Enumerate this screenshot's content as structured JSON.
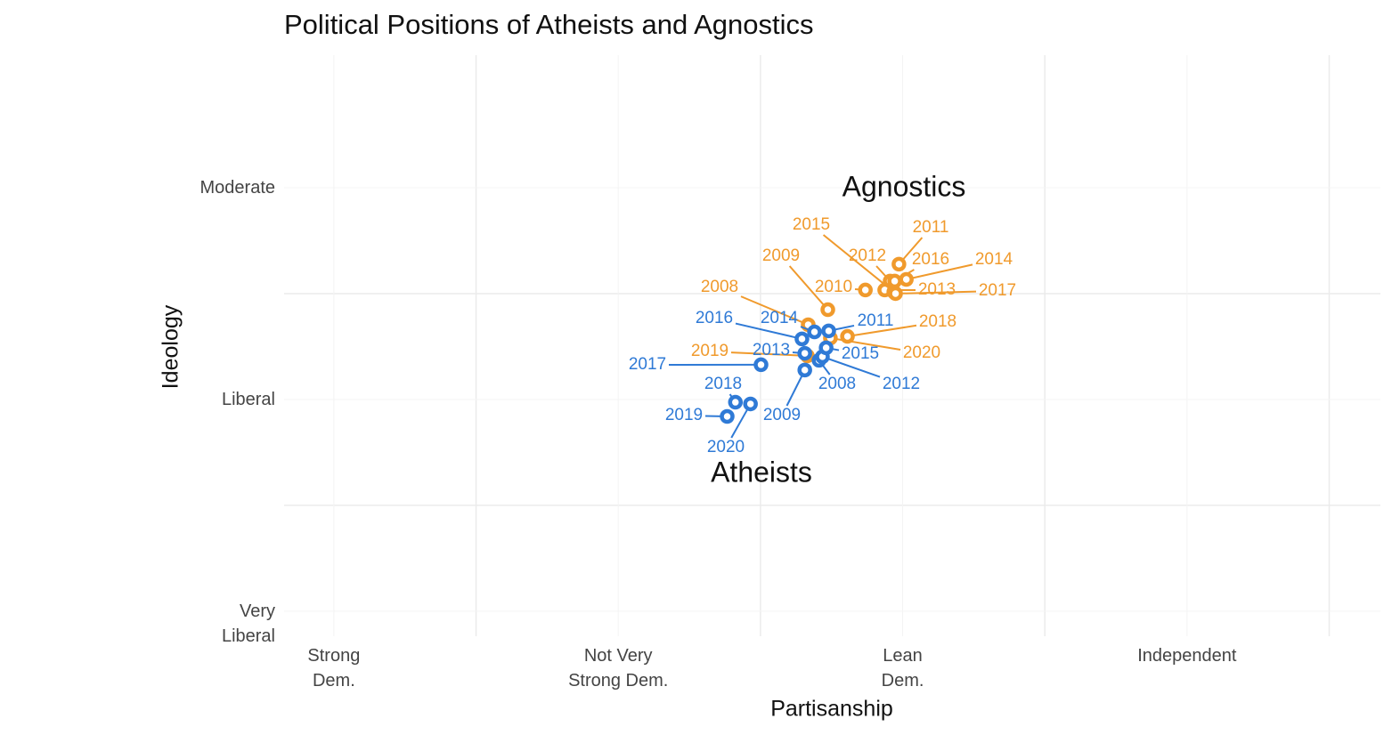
{
  "chart_data": {
    "type": "scatter",
    "title": "Political Positions of Atheists and Agnostics",
    "x_label": "Partisanship",
    "y_label": "Ideology",
    "xlim": [
      0.825,
      4.68
    ],
    "xticks": [
      {
        "value": 1,
        "label": "Strong\nDem."
      },
      {
        "value": 2,
        "label": "Not Very\nStrong Dem."
      },
      {
        "value": 3,
        "label": "Lean\nDem."
      },
      {
        "value": 4,
        "label": "Independent"
      }
    ],
    "xminor": [
      1.5,
      2.5,
      3.5,
      4.5
    ],
    "ylim": [
      0.882,
      3.626
    ],
    "yticks": [
      {
        "value": 1,
        "label": "Very\nLiberal"
      },
      {
        "value": 2,
        "label": "Liberal"
      },
      {
        "value": 3,
        "label": "Moderate"
      }
    ],
    "yminor": [
      1.5,
      2.5
    ],
    "grid": true,
    "annotations": [
      "Agnostics",
      "Atheists"
    ],
    "series": [
      {
        "name": "Agnostics",
        "color": "#f09a2c",
        "labels": [
          "2008",
          "2009",
          "2010",
          "2011",
          "2012",
          "2013",
          "2014",
          "2015",
          "2016",
          "2017",
          "2018",
          "2019",
          "2020"
        ],
        "x": [
          2.668,
          2.737,
          2.869,
          2.987,
          2.956,
          2.937,
          3.013,
          2.969,
          2.972,
          2.975,
          2.806,
          2.665,
          2.746
        ],
        "y": [
          2.353,
          2.424,
          2.517,
          2.639,
          2.559,
          2.517,
          2.567,
          2.508,
          2.559,
          2.5,
          2.298,
          2.206,
          2.29
        ]
      },
      {
        "name": "Atheists",
        "color": "#2f7ad6",
        "labels": [
          "2008",
          "2009",
          "2011",
          "2012",
          "2013",
          "2014",
          "2015",
          "2016",
          "2017",
          "2018",
          "2019",
          "2020"
        ],
        "x": [
          2.706,
          2.656,
          2.74,
          2.718,
          2.656,
          2.69,
          2.731,
          2.646,
          2.502,
          2.412,
          2.383,
          2.465
        ],
        "y": [
          2.185,
          2.139,
          2.324,
          2.202,
          2.218,
          2.319,
          2.244,
          2.286,
          2.164,
          1.987,
          1.92,
          1.979
        ]
      }
    ]
  }
}
